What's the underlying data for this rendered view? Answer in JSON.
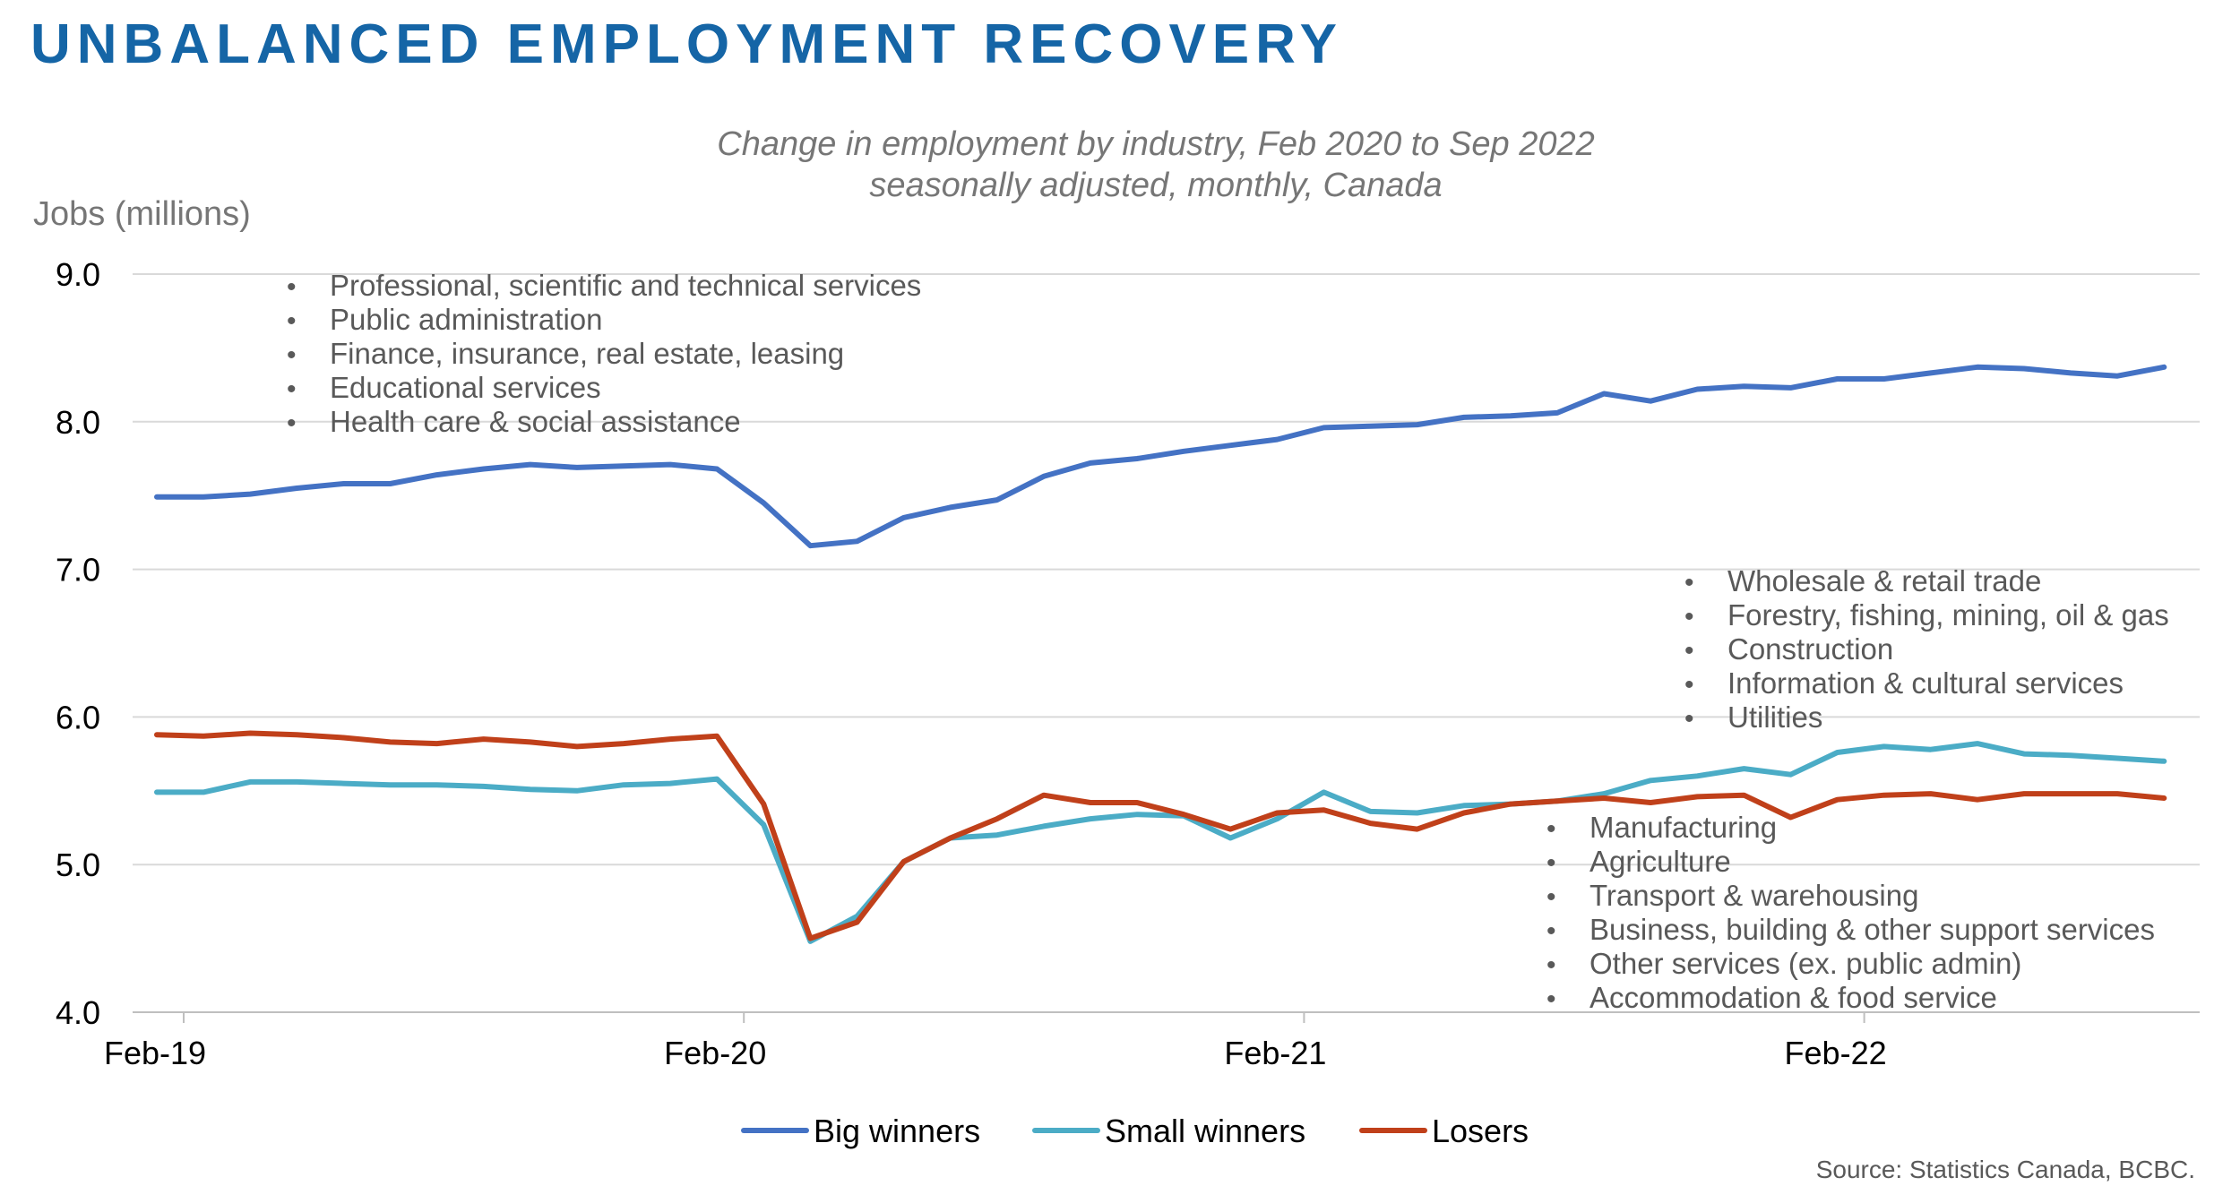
{
  "header": {
    "title": "UNBALANCED EMPLOYMENT RECOVERY",
    "subtitle_line1": "Change in employment by industry, Feb 2020 to Sep 2022",
    "subtitle_line2": "seasonally adjusted, monthly, Canada"
  },
  "source": "Source: Statistics Canada, BCBC.",
  "colors": {
    "title": "#1565a6",
    "big_winners": "#4472c4",
    "small_winners": "#4bacc6",
    "losers": "#c0401a",
    "grid": "#d9d9d9",
    "axis_text": "#000000",
    "annotation_text": "#595959"
  },
  "chart_data": {
    "type": "line",
    "ylabel": "Jobs (millions)",
    "xlabel": "",
    "ylim": [
      4.0,
      9.0
    ],
    "yticks": [
      "4.0",
      "5.0",
      "6.0",
      "7.0",
      "8.0",
      "9.0"
    ],
    "grid": true,
    "x_start": "Feb-19",
    "x_end": "Sep-22",
    "x_ticks": [
      {
        "label": "Feb-19",
        "month_index": 0
      },
      {
        "label": "Feb-20",
        "month_index": 12
      },
      {
        "label": "Feb-21",
        "month_index": 24
      },
      {
        "label": "Feb-22",
        "month_index": 36
      }
    ],
    "legend_position": "bottom-center",
    "series": [
      {
        "name": "Big winners",
        "color": "#4472c4",
        "values": [
          7.49,
          7.49,
          7.51,
          7.55,
          7.58,
          7.58,
          7.64,
          7.68,
          7.71,
          7.69,
          7.7,
          7.71,
          7.68,
          7.45,
          7.16,
          7.19,
          7.35,
          7.42,
          7.47,
          7.63,
          7.72,
          7.75,
          7.8,
          7.84,
          7.88,
          7.96,
          7.97,
          7.98,
          8.03,
          8.04,
          8.06,
          8.19,
          8.14,
          8.22,
          8.24,
          8.23,
          8.29,
          8.29,
          8.33,
          8.37,
          8.36,
          8.33,
          8.31,
          8.37
        ]
      },
      {
        "name": "Small winners",
        "color": "#4bacc6",
        "values": [
          5.49,
          5.49,
          5.56,
          5.56,
          5.55,
          5.54,
          5.54,
          5.53,
          5.51,
          5.5,
          5.54,
          5.55,
          5.58,
          5.27,
          4.48,
          4.65,
          5.02,
          5.18,
          5.2,
          5.26,
          5.31,
          5.34,
          5.33,
          5.18,
          5.31,
          5.49,
          5.36,
          5.35,
          5.4,
          5.41,
          5.43,
          5.48,
          5.57,
          5.6,
          5.65,
          5.61,
          5.76,
          5.8,
          5.78,
          5.82,
          5.75,
          5.74,
          5.72,
          5.7
        ]
      },
      {
        "name": "Losers",
        "color": "#c0401a",
        "values": [
          5.88,
          5.87,
          5.89,
          5.88,
          5.86,
          5.83,
          5.82,
          5.85,
          5.83,
          5.8,
          5.82,
          5.85,
          5.87,
          5.41,
          4.5,
          4.61,
          5.02,
          5.18,
          5.31,
          5.47,
          5.42,
          5.42,
          5.34,
          5.24,
          5.35,
          5.37,
          5.28,
          5.24,
          5.35,
          5.41,
          5.43,
          5.45,
          5.42,
          5.46,
          5.47,
          5.32,
          5.44,
          5.47,
          5.48,
          5.44,
          5.48,
          5.48,
          5.48,
          5.45
        ]
      }
    ],
    "annotations": [
      {
        "group": "big-winners",
        "items": [
          "Professional, scientific and technical services",
          "Public administration",
          "Finance, insurance, real estate, leasing",
          "Educational services",
          "Health care & social assistance"
        ]
      },
      {
        "group": "small-winners",
        "items": [
          "Wholesale & retail trade",
          "Forestry, fishing, mining, oil & gas",
          "Construction",
          "Information & cultural services",
          "Utilities"
        ]
      },
      {
        "group": "losers",
        "items": [
          "Manufacturing",
          "Agriculture",
          "Transport & warehousing",
          "Business, building & other support services",
          "Other services (ex. public admin)",
          "Accommodation & food service"
        ]
      }
    ]
  }
}
